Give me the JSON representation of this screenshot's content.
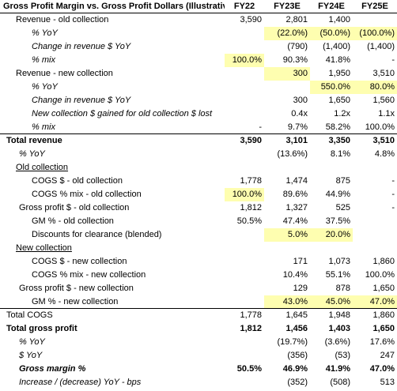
{
  "header": {
    "title": "Gross Profit Margin vs. Gross Profit Dollars (Illustrative)",
    "columns": [
      "FY22",
      "FY23E",
      "FY24E",
      "FY25E"
    ]
  },
  "rows": [
    {
      "label": "Revenue - old collection",
      "values": [
        "3,590",
        "2,801",
        "1,400",
        ""
      ]
    },
    {
      "label": "% YoY",
      "values": [
        "",
        "(22.0%)",
        "(50.0%)",
        "(100.0%)"
      ],
      "hl": [
        false,
        true,
        true,
        true
      ]
    },
    {
      "label": "Change in revenue $ YoY",
      "values": [
        "",
        "(790)",
        "(1,400)",
        "(1,400)"
      ]
    },
    {
      "label": "% mix",
      "values": [
        "100.0%",
        "90.3%",
        "41.8%",
        "-"
      ],
      "hl": [
        true,
        false,
        false,
        false
      ]
    },
    {
      "label": "Revenue - new collection",
      "values": [
        "",
        "300",
        "1,950",
        "3,510"
      ],
      "hl": [
        false,
        true,
        false,
        false
      ]
    },
    {
      "label": "% YoY",
      "values": [
        "",
        "",
        "550.0%",
        "80.0%"
      ],
      "hl": [
        false,
        false,
        true,
        true
      ]
    },
    {
      "label": "Change in revenue $ YoY",
      "values": [
        "",
        "300",
        "1,650",
        "1,560"
      ]
    },
    {
      "label": "New collection $ gained for old collection $ lost",
      "values": [
        "",
        "0.4x",
        "1.2x",
        "1.1x"
      ]
    },
    {
      "label": "% mix",
      "values": [
        "-",
        "9.7%",
        "58.2%",
        "100.0%"
      ]
    },
    {
      "label": "Total revenue",
      "values": [
        "3,590",
        "3,101",
        "3,350",
        "3,510"
      ]
    },
    {
      "label": "% YoY",
      "values": [
        "",
        "(13.6%)",
        "8.1%",
        "4.8%"
      ]
    },
    {
      "label": "Old collection",
      "values": [
        "",
        "",
        "",
        ""
      ]
    },
    {
      "label": "COGS $ - old collection",
      "values": [
        "1,778",
        "1,474",
        "875",
        "-"
      ]
    },
    {
      "label": "COGS % mix - old collection",
      "values": [
        "100.0%",
        "89.6%",
        "44.9%",
        "-"
      ],
      "hl": [
        true,
        false,
        false,
        false
      ]
    },
    {
      "label": "Gross profit $ - old collection",
      "values": [
        "1,812",
        "1,327",
        "525",
        "-"
      ]
    },
    {
      "label": "GM % - old collection",
      "values": [
        "50.5%",
        "47.4%",
        "37.5%",
        ""
      ]
    },
    {
      "label": "Discounts for clearance (blended)",
      "values": [
        "",
        "5.0%",
        "20.0%",
        ""
      ],
      "hl": [
        false,
        true,
        true,
        false
      ]
    },
    {
      "label": "New collection",
      "values": [
        "",
        "",
        "",
        ""
      ]
    },
    {
      "label": "COGS $ - new collection",
      "values": [
        "",
        "171",
        "1,073",
        "1,860"
      ]
    },
    {
      "label": "COGS % mix - new collection",
      "values": [
        "",
        "10.4%",
        "55.1%",
        "100.0%"
      ]
    },
    {
      "label": "Gross profit $ - new collection",
      "values": [
        "",
        "129",
        "878",
        "1,650"
      ]
    },
    {
      "label": "GM % - new collection",
      "values": [
        "",
        "43.0%",
        "45.0%",
        "47.0%"
      ],
      "hl": [
        false,
        true,
        true,
        true
      ]
    },
    {
      "label": "Total COGS",
      "values": [
        "1,778",
        "1,645",
        "1,948",
        "1,860"
      ]
    },
    {
      "label": "Total gross profit",
      "values": [
        "1,812",
        "1,456",
        "1,403",
        "1,650"
      ]
    },
    {
      "label": "% YoY",
      "values": [
        "",
        "(19.7%)",
        "(3.6%)",
        "17.6%"
      ]
    },
    {
      "label": "$ YoY",
      "values": [
        "",
        "(356)",
        "(53)",
        "247"
      ]
    },
    {
      "label": "Gross margin %",
      "values": [
        "50.5%",
        "46.9%",
        "41.9%",
        "47.0%"
      ]
    },
    {
      "label": "Increase / (decrease) YoY - bps",
      "values": [
        "",
        "(352)",
        "(508)",
        "513"
      ]
    }
  ]
}
